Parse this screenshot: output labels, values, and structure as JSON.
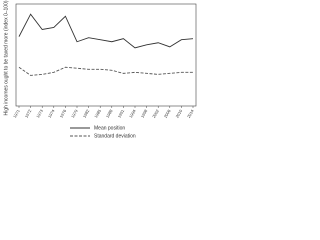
{
  "chart_data": {
    "type": "line",
    "y_label": "High incomes ought to be taxed more (index 0–100)",
    "categories": [
      "1971",
      "1972",
      "1973",
      "1974",
      "1976",
      "1979",
      "1982",
      "1985",
      "1988",
      "1991",
      "1994",
      "1998",
      "2002",
      "2006",
      "2010",
      "2014"
    ],
    "series": [
      {
        "name": "Mean position",
        "color": "#333333",
        "dash": false,
        "values": [
          68,
          90,
          75,
          77,
          88,
          63,
          67,
          65,
          63,
          66,
          57,
          60,
          62,
          58,
          65,
          66
        ]
      },
      {
        "name": "Standard deviation",
        "color": "#555555",
        "dash": true,
        "values": [
          38,
          30,
          31,
          33,
          38,
          37,
          36,
          36,
          35,
          32,
          33,
          32,
          31,
          32,
          33,
          33
        ]
      }
    ],
    "ylim": [
      0,
      100
    ]
  }
}
